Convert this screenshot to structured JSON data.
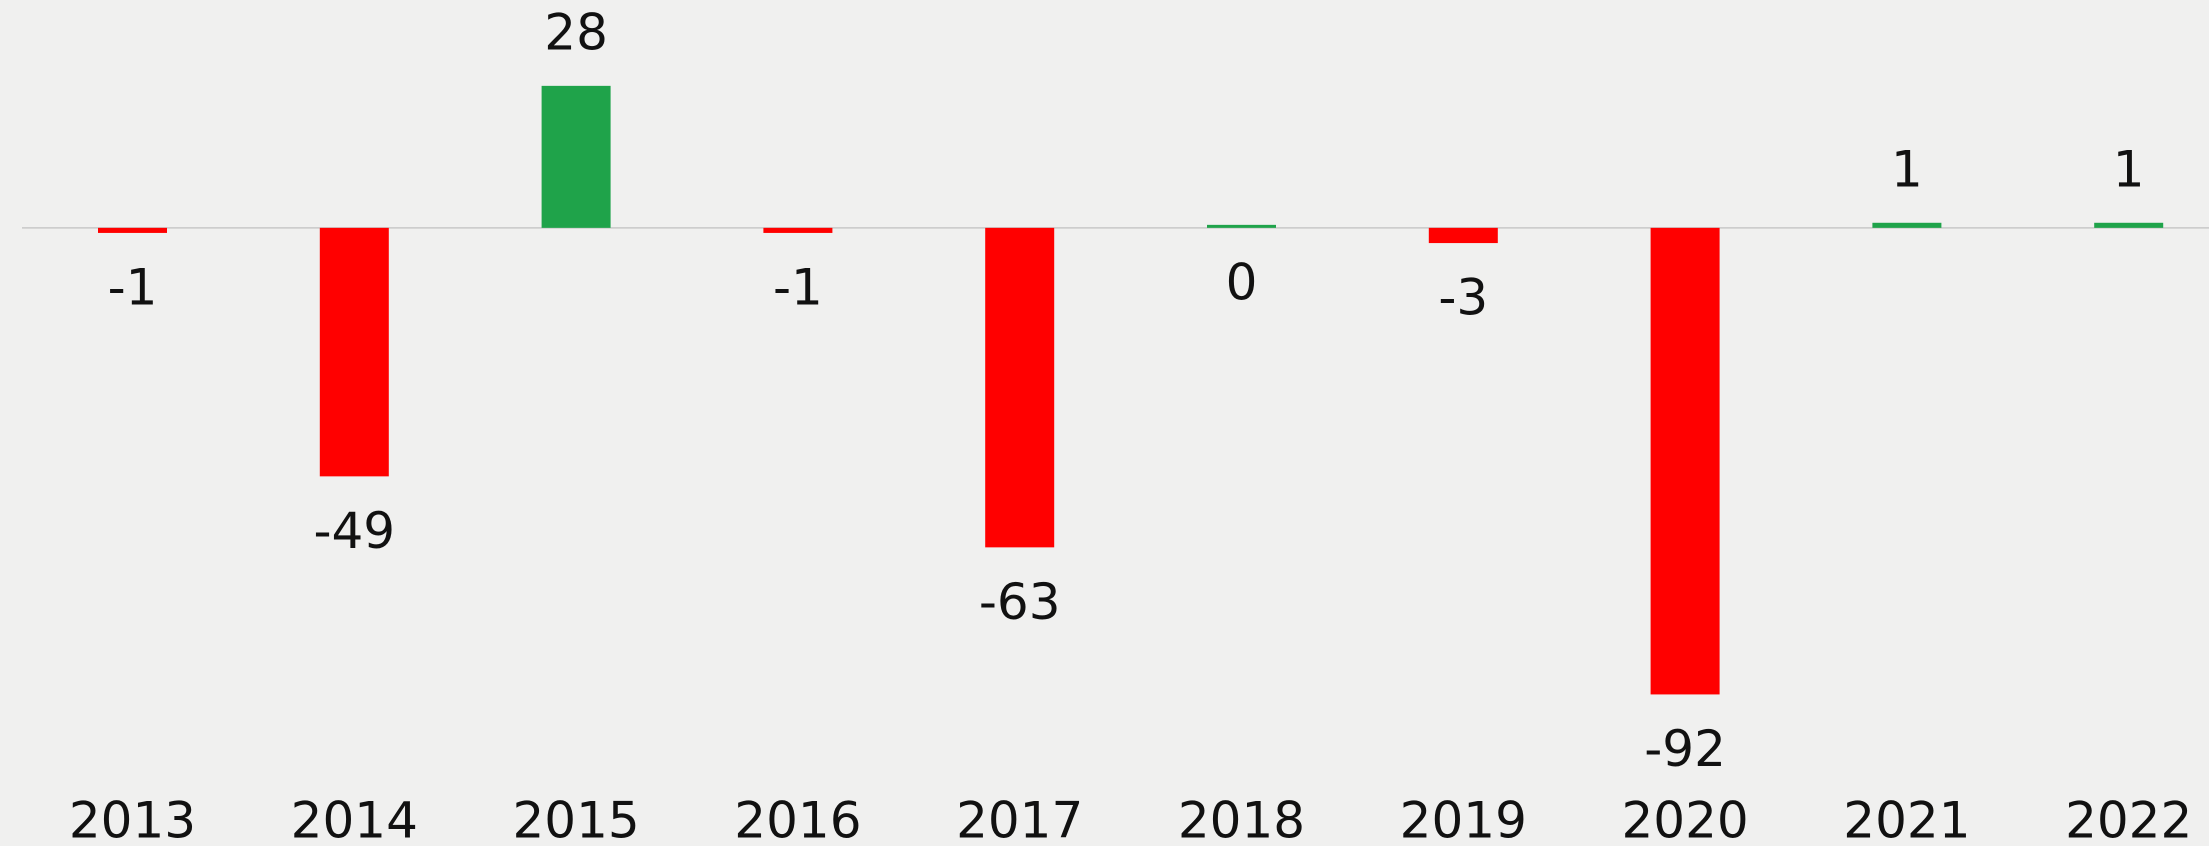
{
  "chart_data": {
    "type": "bar",
    "categories": [
      "2013",
      "2014",
      "2015",
      "2016",
      "2017",
      "2018",
      "2019",
      "2020",
      "2021",
      "2022"
    ],
    "values": [
      -1,
      -49,
      28,
      -1,
      -63,
      0,
      -3,
      -92,
      1,
      1
    ],
    "positive_color": "#1fa34a",
    "negative_color": "#ff0000",
    "ylim": [
      -100,
      40
    ],
    "grid": false
  }
}
